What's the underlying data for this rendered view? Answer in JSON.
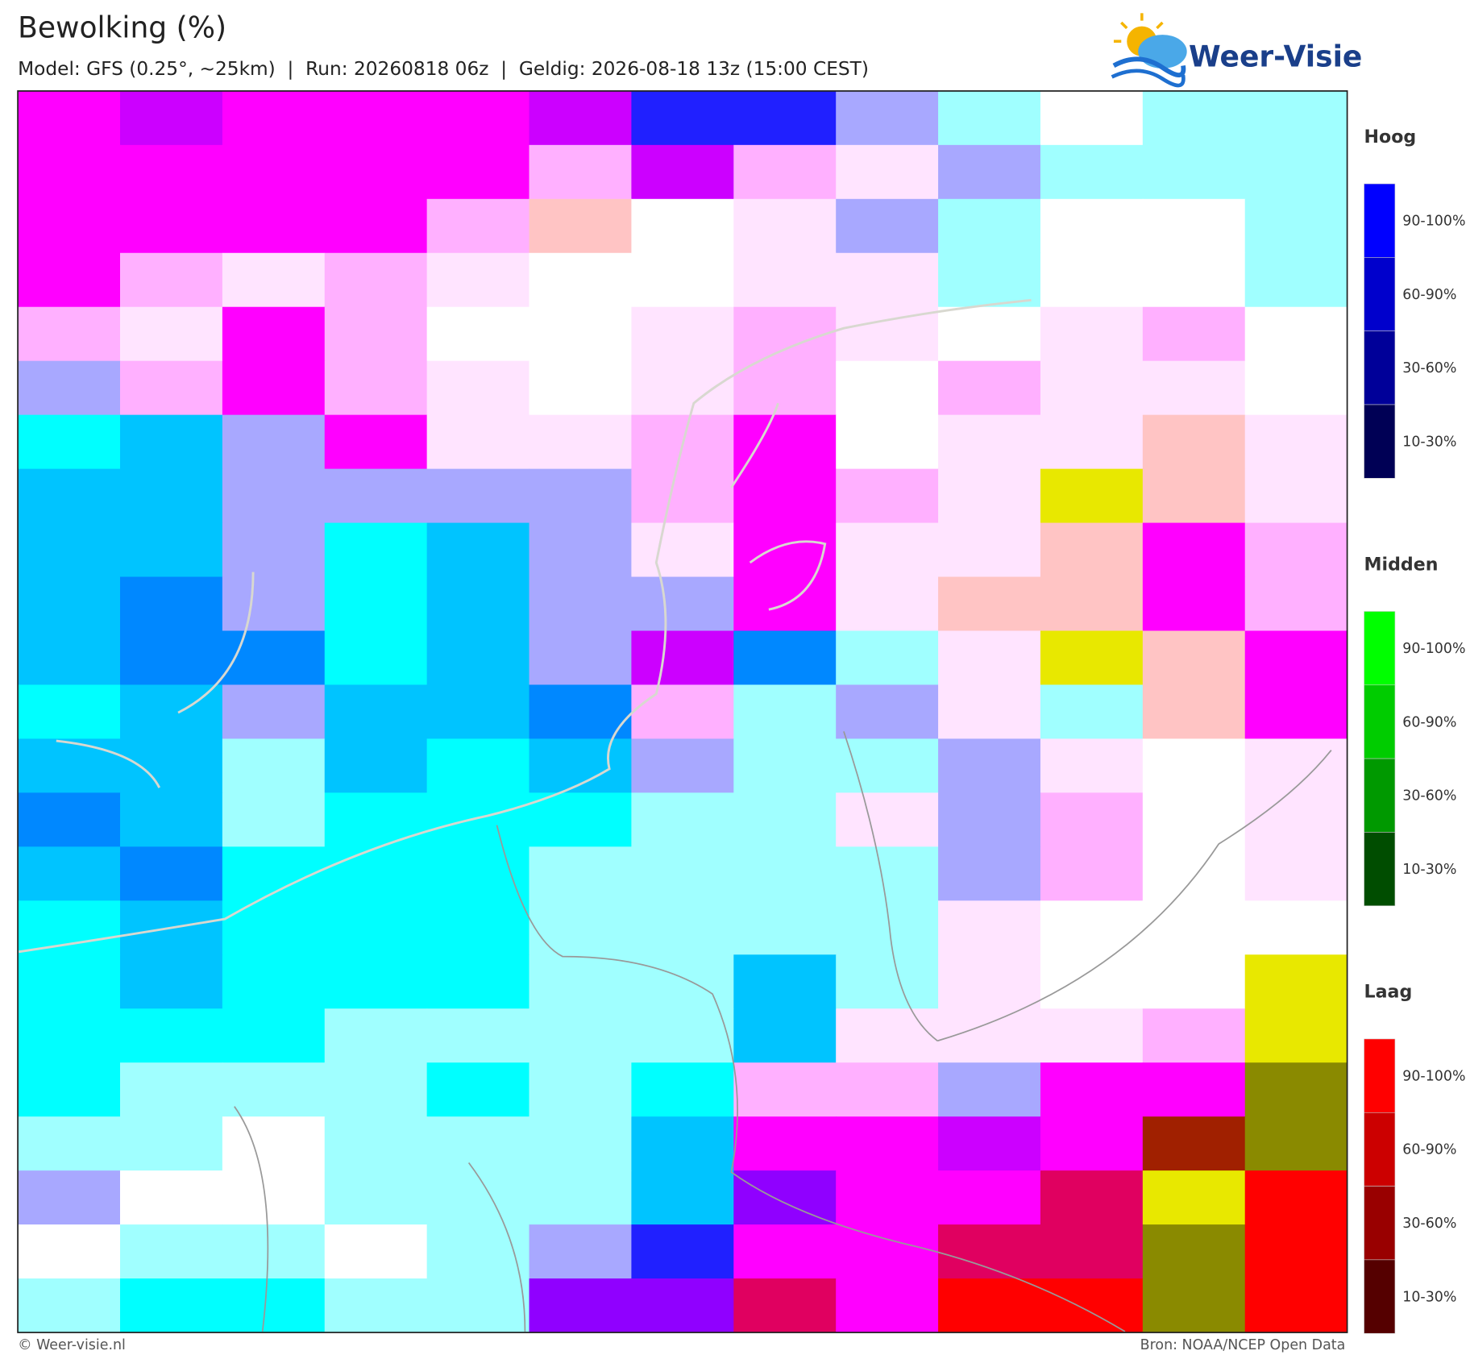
{
  "header": {
    "title": "Bewolking (%)",
    "subtitle": "Model: GFS (0.25°, ~25km)  |  Run: 20260818 06z  |  Geldig: 2026-08-18 13z (15:00 CEST)",
    "logo": "Weer-Visie"
  },
  "legend": [
    {
      "title": "Hoog",
      "colors": [
        "#0000ff",
        "#0000cc",
        "#000099",
        "#000055"
      ],
      "items": [
        "90-100%",
        "60-90%",
        "30-60%",
        "10-30%"
      ]
    },
    {
      "title": "Midden",
      "colors": [
        "#00ff00",
        "#00cc00",
        "#009900",
        "#004d00"
      ],
      "items": [
        "90-100%",
        "60-90%",
        "30-60%",
        "10-30%"
      ]
    },
    {
      "title": "Laag",
      "colors": [
        "#ff0000",
        "#cc0000",
        "#990000",
        "#550000"
      ],
      "items": [
        "90-100%",
        "60-90%",
        "30-60%",
        "10-30%"
      ]
    }
  ],
  "footer": {
    "left": "© Weer-visie.nl",
    "right": "Bron: NOAA/NCEP Open Data"
  }
}
